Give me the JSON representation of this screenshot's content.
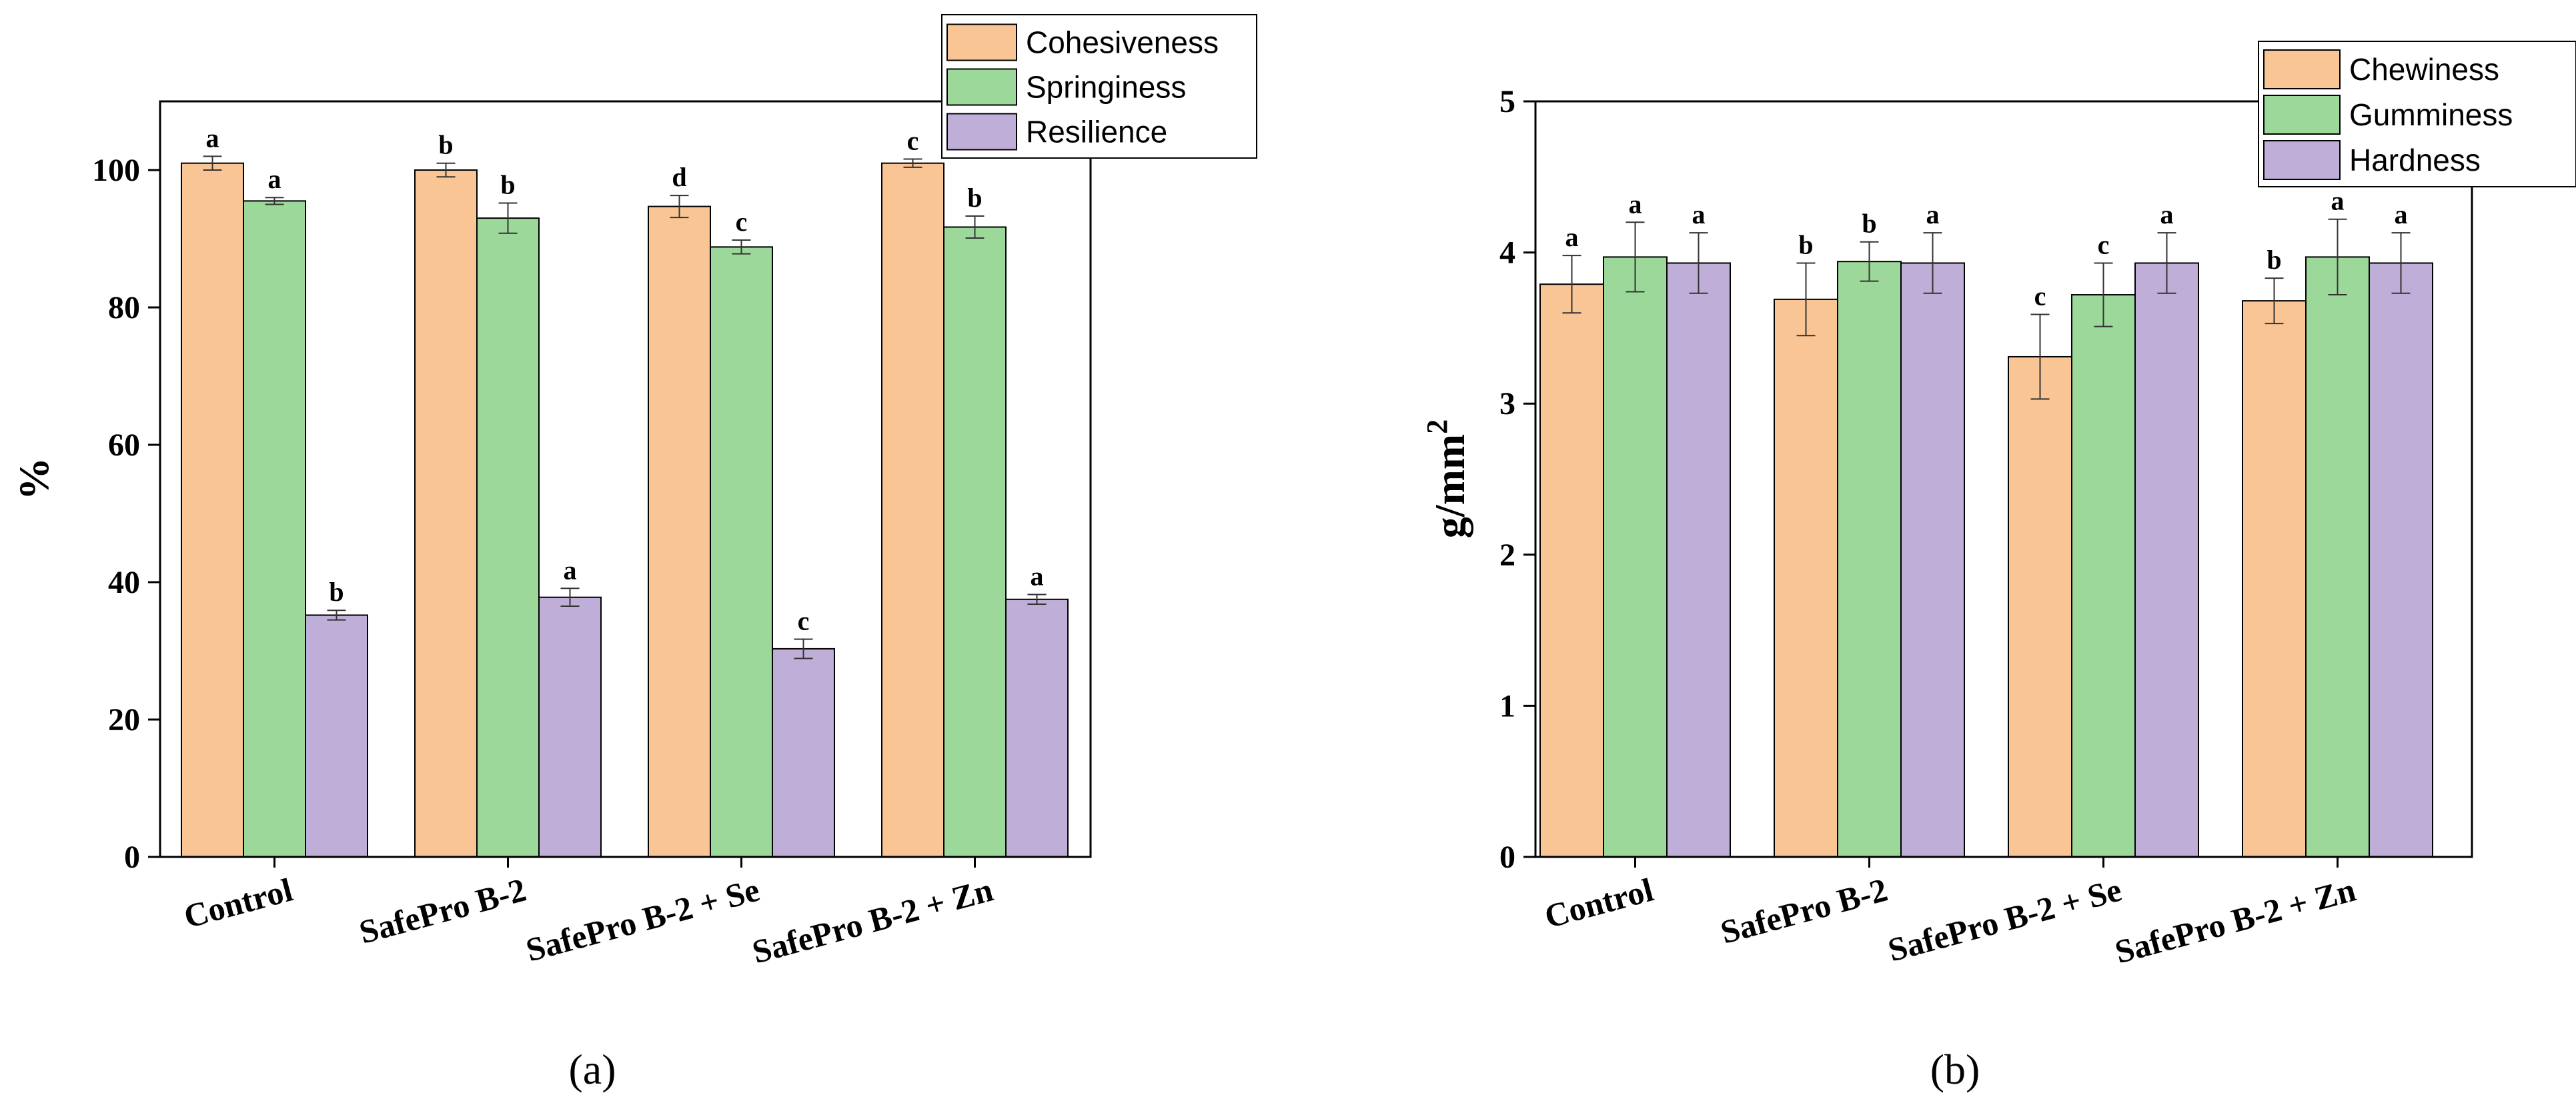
{
  "colors": {
    "orange": "#F9C595",
    "green": "#9DD89B",
    "purple": "#BFAED8"
  },
  "chart_data": [
    {
      "type": "bar",
      "panel_label": "(a)",
      "ylabel": "%",
      "ylim": [
        0,
        110
      ],
      "yticks": [
        0,
        20,
        40,
        60,
        80,
        100
      ],
      "categories": [
        "Control",
        "SafePro B-2",
        "SafePro B-2 + Se",
        "SafePro B-2 + Zn"
      ],
      "legend_position": "top-right",
      "series": [
        {
          "name": "Cohesiveness",
          "color": "orange",
          "values": [
            101.0,
            100.0,
            94.7,
            101.0
          ],
          "errors": [
            1.0,
            1.0,
            1.6,
            0.6
          ],
          "labels": [
            "a",
            "b",
            "d",
            "c"
          ]
        },
        {
          "name": "Springiness",
          "color": "green",
          "values": [
            95.5,
            93.0,
            88.8,
            91.7
          ],
          "errors": [
            0.5,
            2.2,
            1.0,
            1.6
          ],
          "labels": [
            "a",
            "b",
            "c",
            "b"
          ]
        },
        {
          "name": "Resilience",
          "color": "purple",
          "values": [
            35.2,
            37.8,
            30.3,
            37.5
          ],
          "errors": [
            0.7,
            1.3,
            1.4,
            0.7
          ],
          "labels": [
            "b",
            "a",
            "c",
            "a"
          ]
        }
      ]
    },
    {
      "type": "bar",
      "panel_label": "(b)",
      "ylabel": "g/mm",
      "ylabel_sup": "2",
      "ylim": [
        0,
        5
      ],
      "yticks": [
        0,
        1,
        2,
        3,
        4,
        5
      ],
      "categories": [
        "Control",
        "SafePro B-2",
        "SafePro B-2 + Se",
        "SafePro B-2 + Zn"
      ],
      "legend_position": "top-right",
      "series": [
        {
          "name": "Chewiness",
          "color": "orange",
          "values": [
            3.79,
            3.69,
            3.31,
            3.68
          ],
          "errors": [
            0.19,
            0.24,
            0.28,
            0.15
          ],
          "labels": [
            "a",
            "b",
            "c",
            "b"
          ]
        },
        {
          "name": "Gumminess",
          "color": "green",
          "values": [
            3.97,
            3.94,
            3.72,
            3.97
          ],
          "errors": [
            0.23,
            0.13,
            0.21,
            0.25
          ],
          "labels": [
            "a",
            "b",
            "c",
            "a"
          ]
        },
        {
          "name": "Hardness",
          "color": "purple",
          "values": [
            3.93,
            3.93,
            3.93,
            3.93
          ],
          "errors": [
            0.2,
            0.2,
            0.2,
            0.2
          ],
          "labels": [
            "a",
            "a",
            "a",
            "a"
          ]
        }
      ]
    }
  ]
}
